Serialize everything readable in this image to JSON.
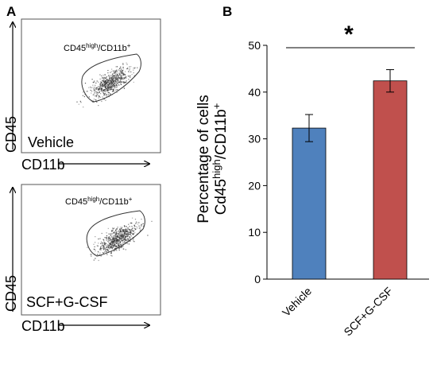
{
  "panel_a": {
    "letter": "A",
    "plots": [
      {
        "sample_label": "Vehicle",
        "gate_main": "CD45",
        "gate_sup": "high",
        "gate_tail": "/CD11b",
        "gate_plus": "+",
        "x_axis": "CD11b",
        "y_axis": "CD45"
      },
      {
        "sample_label": "SCF+G-CSF",
        "gate_main": "CD45",
        "gate_sup": "high",
        "gate_tail": "/CD11b",
        "gate_plus": "+",
        "x_axis": "CD11b",
        "y_axis": "CD45"
      }
    ]
  },
  "panel_b": {
    "letter": "B",
    "significance": "*",
    "ylabel_line1": "Percentage of cells",
    "ylabel_line2_main": "Cd45",
    "ylabel_line2_sup": "high",
    "ylabel_line2_tail": "/CD11b",
    "ylabel_line2_plus": "+"
  },
  "chart_data": {
    "type": "bar",
    "categories": [
      "Vehicle",
      "SCF+G-CSF"
    ],
    "values": [
      32.3,
      42.4
    ],
    "errors": [
      2.9,
      2.4
    ],
    "ylim": [
      0,
      50
    ],
    "yticks": [
      0,
      10,
      20,
      30,
      40,
      50
    ],
    "colors": [
      "#4f81bd",
      "#c0504d"
    ],
    "grid": false,
    "legend": "none"
  }
}
